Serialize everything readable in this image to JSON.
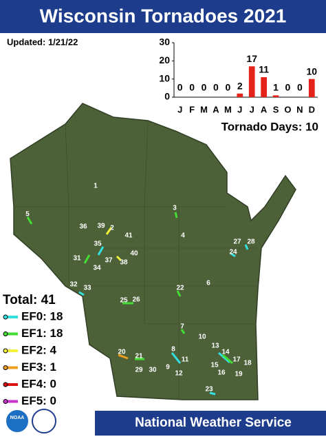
{
  "header": {
    "title": "Wisconsin Tornadoes 2021",
    "updated": "Updated: 1/21/22"
  },
  "chart_data": {
    "type": "bar",
    "categories": [
      "J",
      "F",
      "M",
      "A",
      "M",
      "J",
      "J",
      "A",
      "S",
      "O",
      "N",
      "D"
    ],
    "values": [
      0,
      0,
      0,
      0,
      0,
      2,
      17,
      11,
      1,
      0,
      0,
      10
    ],
    "color": "#e32219",
    "ylim": [
      0,
      30
    ],
    "yticks": [
      0,
      10,
      20,
      30
    ],
    "grid": false,
    "annotation": "Tornado Days: 10"
  },
  "map": {
    "labels": [
      "1",
      "2",
      "3",
      "4",
      "5",
      "6",
      "7",
      "8",
      "9",
      "10",
      "11",
      "12",
      "13",
      "14",
      "15",
      "16",
      "17",
      "18",
      "19",
      "20",
      "21",
      "22",
      "23",
      "24",
      "25",
      "26",
      "27",
      "28",
      "29",
      "30",
      "31",
      "32",
      "33",
      "34",
      "35",
      "36",
      "37",
      "38",
      "39",
      "40",
      "41"
    ]
  },
  "legend": {
    "total": "Total: 41",
    "items": [
      {
        "label": "EF0: 18",
        "color": "#33e0e0"
      },
      {
        "label": "EF1: 18",
        "color": "#44dd33"
      },
      {
        "label": "EF2: 4",
        "color": "#f2f23a"
      },
      {
        "label": "EF3: 1",
        "color": "#f0a020"
      },
      {
        "label": "EF4: 0",
        "color": "#dd1111"
      },
      {
        "label": "EF5: 0",
        "color": "#cc33cc"
      }
    ]
  },
  "footer": {
    "text": "National Weather Service",
    "logo": "NOAA"
  }
}
